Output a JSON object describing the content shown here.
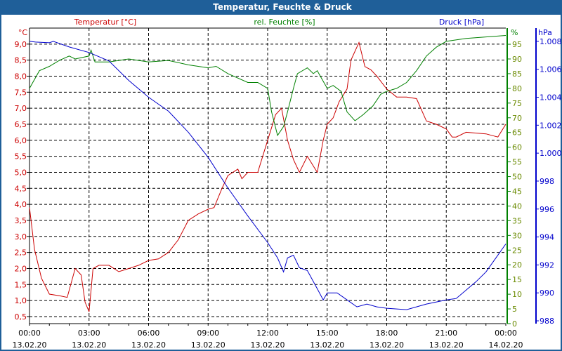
{
  "window_title": "Temperatur, Feuchte & Druck",
  "chart_data": {
    "type": "line",
    "title": "Temperatur, Feuchte & Druck",
    "grid": true,
    "colors": {
      "temperature": "#cc0000",
      "humidity": "#008000",
      "pressure": "#0000cc",
      "humidity_labels": "#6a8a00"
    },
    "x_range_hours": [
      0,
      24
    ],
    "x_ticks": [
      {
        "h": 0,
        "time": "00:00",
        "date": "13.02.20"
      },
      {
        "h": 3,
        "time": "03:00",
        "date": "13.02.20"
      },
      {
        "h": 6,
        "time": "06:00",
        "date": "13.02.20"
      },
      {
        "h": 9,
        "time": "09:00",
        "date": "13.02.20"
      },
      {
        "h": 12,
        "time": "12:00",
        "date": "13.02.20"
      },
      {
        "h": 15,
        "time": "15:00",
        "date": "13.02.20"
      },
      {
        "h": 18,
        "time": "18:00",
        "date": "13.02.20"
      },
      {
        "h": 21,
        "time": "21:00",
        "date": "13.02.20"
      },
      {
        "h": 24,
        "time": "00:00",
        "date": "14.02.20"
      }
    ],
    "axes": {
      "temperature": {
        "label": "Temperatur [°C]",
        "unit": "°C",
        "ylim": [
          0.28,
          9.5
        ],
        "ticks": [
          "0,5",
          "1,0",
          "1,5",
          "2,0",
          "2,5",
          "3,0",
          "3,5",
          "4,0",
          "4,5",
          "5,0",
          "5,5",
          "6,0",
          "6,5",
          "7,0",
          "7,5",
          "8,0",
          "8,5",
          "9,0"
        ],
        "tick_values": [
          0.5,
          1,
          1.5,
          2,
          2.5,
          3,
          3.5,
          4,
          4.5,
          5,
          5.5,
          6,
          6.5,
          7,
          7.5,
          8,
          8.5,
          9
        ]
      },
      "humidity": {
        "label": "rel. Feuchte [%]",
        "unit": "%",
        "ylim": [
          0,
          100.5
        ],
        "ticks": [
          "0",
          "5",
          "10",
          "15",
          "20",
          "25",
          "30",
          "35",
          "40",
          "45",
          "50",
          "55",
          "60",
          "65",
          "70",
          "75",
          "80",
          "85",
          "90",
          "95"
        ],
        "tick_values": [
          0,
          5,
          10,
          15,
          20,
          25,
          30,
          35,
          40,
          45,
          50,
          55,
          60,
          65,
          70,
          75,
          80,
          85,
          90,
          95
        ]
      },
      "pressure": {
        "label": "Druck [hPa]",
        "unit": "hPa",
        "ylim": [
          987.8,
          1008.95
        ],
        "ticks": [
          "988",
          "990",
          "992",
          "994",
          "996",
          "998",
          "1.000",
          "1.002",
          "1.004",
          "1.006",
          "1.008"
        ],
        "tick_values": [
          988,
          990,
          992,
          994,
          996,
          998,
          1000,
          1002,
          1004,
          1006,
          1008
        ]
      }
    },
    "series": [
      {
        "name": "Temperatur",
        "axis": "temperature",
        "x": [
          0,
          0.25,
          0.6,
          1,
          1.5,
          1.9,
          2.3,
          2.6,
          2.8,
          3,
          3.2,
          3.5,
          4,
          4.5,
          5,
          5.5,
          6,
          6.5,
          7,
          7.5,
          8,
          8.5,
          9,
          9.3,
          9.7,
          10,
          10.5,
          10.7,
          11,
          11.5,
          12,
          12.4,
          12.7,
          13,
          13.3,
          13.6,
          14,
          14.2,
          14.5,
          14.8,
          15,
          15.3,
          15.6,
          16,
          16.2,
          16.6,
          16.9,
          17.2,
          17.5,
          18,
          18.5,
          19,
          19.5,
          20,
          20.5,
          21,
          21.3,
          21.5,
          22,
          23,
          23.6,
          24
        ],
        "values": [
          3.9,
          2.6,
          1.7,
          1.2,
          1.15,
          1.1,
          2.0,
          1.8,
          0.95,
          0.65,
          2.0,
          2.1,
          2.1,
          1.9,
          2.0,
          2.1,
          2.25,
          2.3,
          2.5,
          2.9,
          3.5,
          3.7,
          3.85,
          3.9,
          4.5,
          4.9,
          5.1,
          4.8,
          5.0,
          5.0,
          6.0,
          6.8,
          7.0,
          6.0,
          5.4,
          5.0,
          5.5,
          5.3,
          5.0,
          6.0,
          6.5,
          6.7,
          7.2,
          7.6,
          8.5,
          9.05,
          8.3,
          8.2,
          8.0,
          7.6,
          7.35,
          7.35,
          7.3,
          6.6,
          6.5,
          6.35,
          6.1,
          6.1,
          6.25,
          6.2,
          6.1,
          6.5
        ]
      },
      {
        "name": "rel. Feuchte",
        "axis": "humidity",
        "x": [
          0,
          0.5,
          1,
          1.5,
          2,
          2.3,
          3,
          3.1,
          3.3,
          4,
          5,
          6,
          7,
          8,
          9,
          9.4,
          10,
          11,
          11.5,
          12,
          12.2,
          12.5,
          12.8,
          13,
          13.3,
          13.5,
          14,
          14.3,
          14.5,
          15,
          15.3,
          15.7,
          16,
          16.4,
          16.8,
          17.3,
          17.7,
          18,
          18.5,
          19,
          19.5,
          20,
          20.5,
          21,
          22,
          23,
          24
        ],
        "values": [
          80,
          86,
          87.5,
          89.5,
          91,
          90,
          91,
          93,
          89,
          89,
          90,
          89,
          89.5,
          88,
          87,
          87.5,
          85,
          82,
          82,
          80,
          72,
          64,
          67,
          72,
          80,
          85,
          87,
          85,
          86,
          80,
          81,
          79,
          72,
          69,
          71,
          74,
          78,
          79,
          80,
          82,
          86,
          91,
          94,
          96,
          97,
          97.5,
          98
        ]
      },
      {
        "name": "Druck",
        "axis": "pressure",
        "x": [
          0,
          0.3,
          1,
          1.2,
          2,
          3,
          4,
          5,
          6,
          7,
          8,
          9,
          10,
          11,
          12,
          12.5,
          12.8,
          13,
          13.3,
          13.6,
          14,
          14.5,
          14.8,
          15,
          15.5,
          16,
          16.5,
          17,
          17.5,
          18,
          19,
          20,
          21,
          21.5,
          22,
          22.5,
          23,
          23.5,
          24
        ],
        "values": [
          1008,
          1007.95,
          1007.9,
          1008,
          1007.6,
          1007.2,
          1006.6,
          1005.2,
          1004.0,
          1003.0,
          1001.5,
          999.7,
          997.5,
          995.5,
          993.6,
          992.5,
          991.5,
          992.5,
          992.7,
          991.8,
          991.6,
          990.3,
          989.5,
          990.0,
          990.0,
          989.5,
          989.0,
          989.2,
          989.0,
          988.9,
          988.8,
          989.2,
          989.5,
          989.6,
          990.2,
          990.8,
          991.5,
          992.5,
          993.5
        ]
      }
    ]
  }
}
